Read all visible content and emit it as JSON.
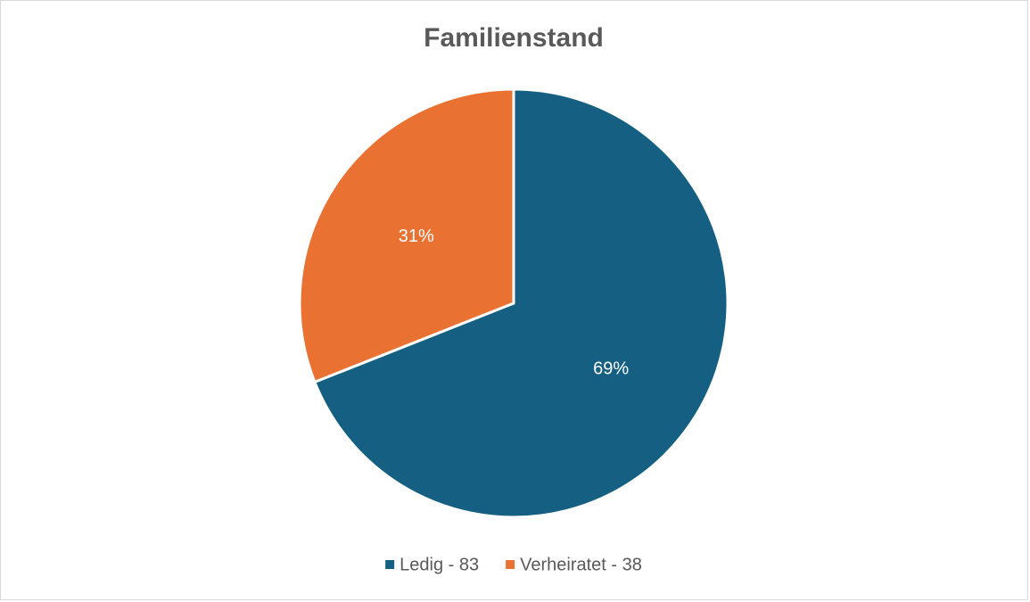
{
  "chart_data": {
    "type": "pie",
    "title": "Familienstand",
    "categories": [
      "Ledig - 83",
      "Verheiratet - 38"
    ],
    "values": [
      69,
      31
    ],
    "value_labels": [
      "69%",
      "31%"
    ],
    "colors": [
      "#156082",
      "#e97132"
    ],
    "legend": "bottom"
  }
}
